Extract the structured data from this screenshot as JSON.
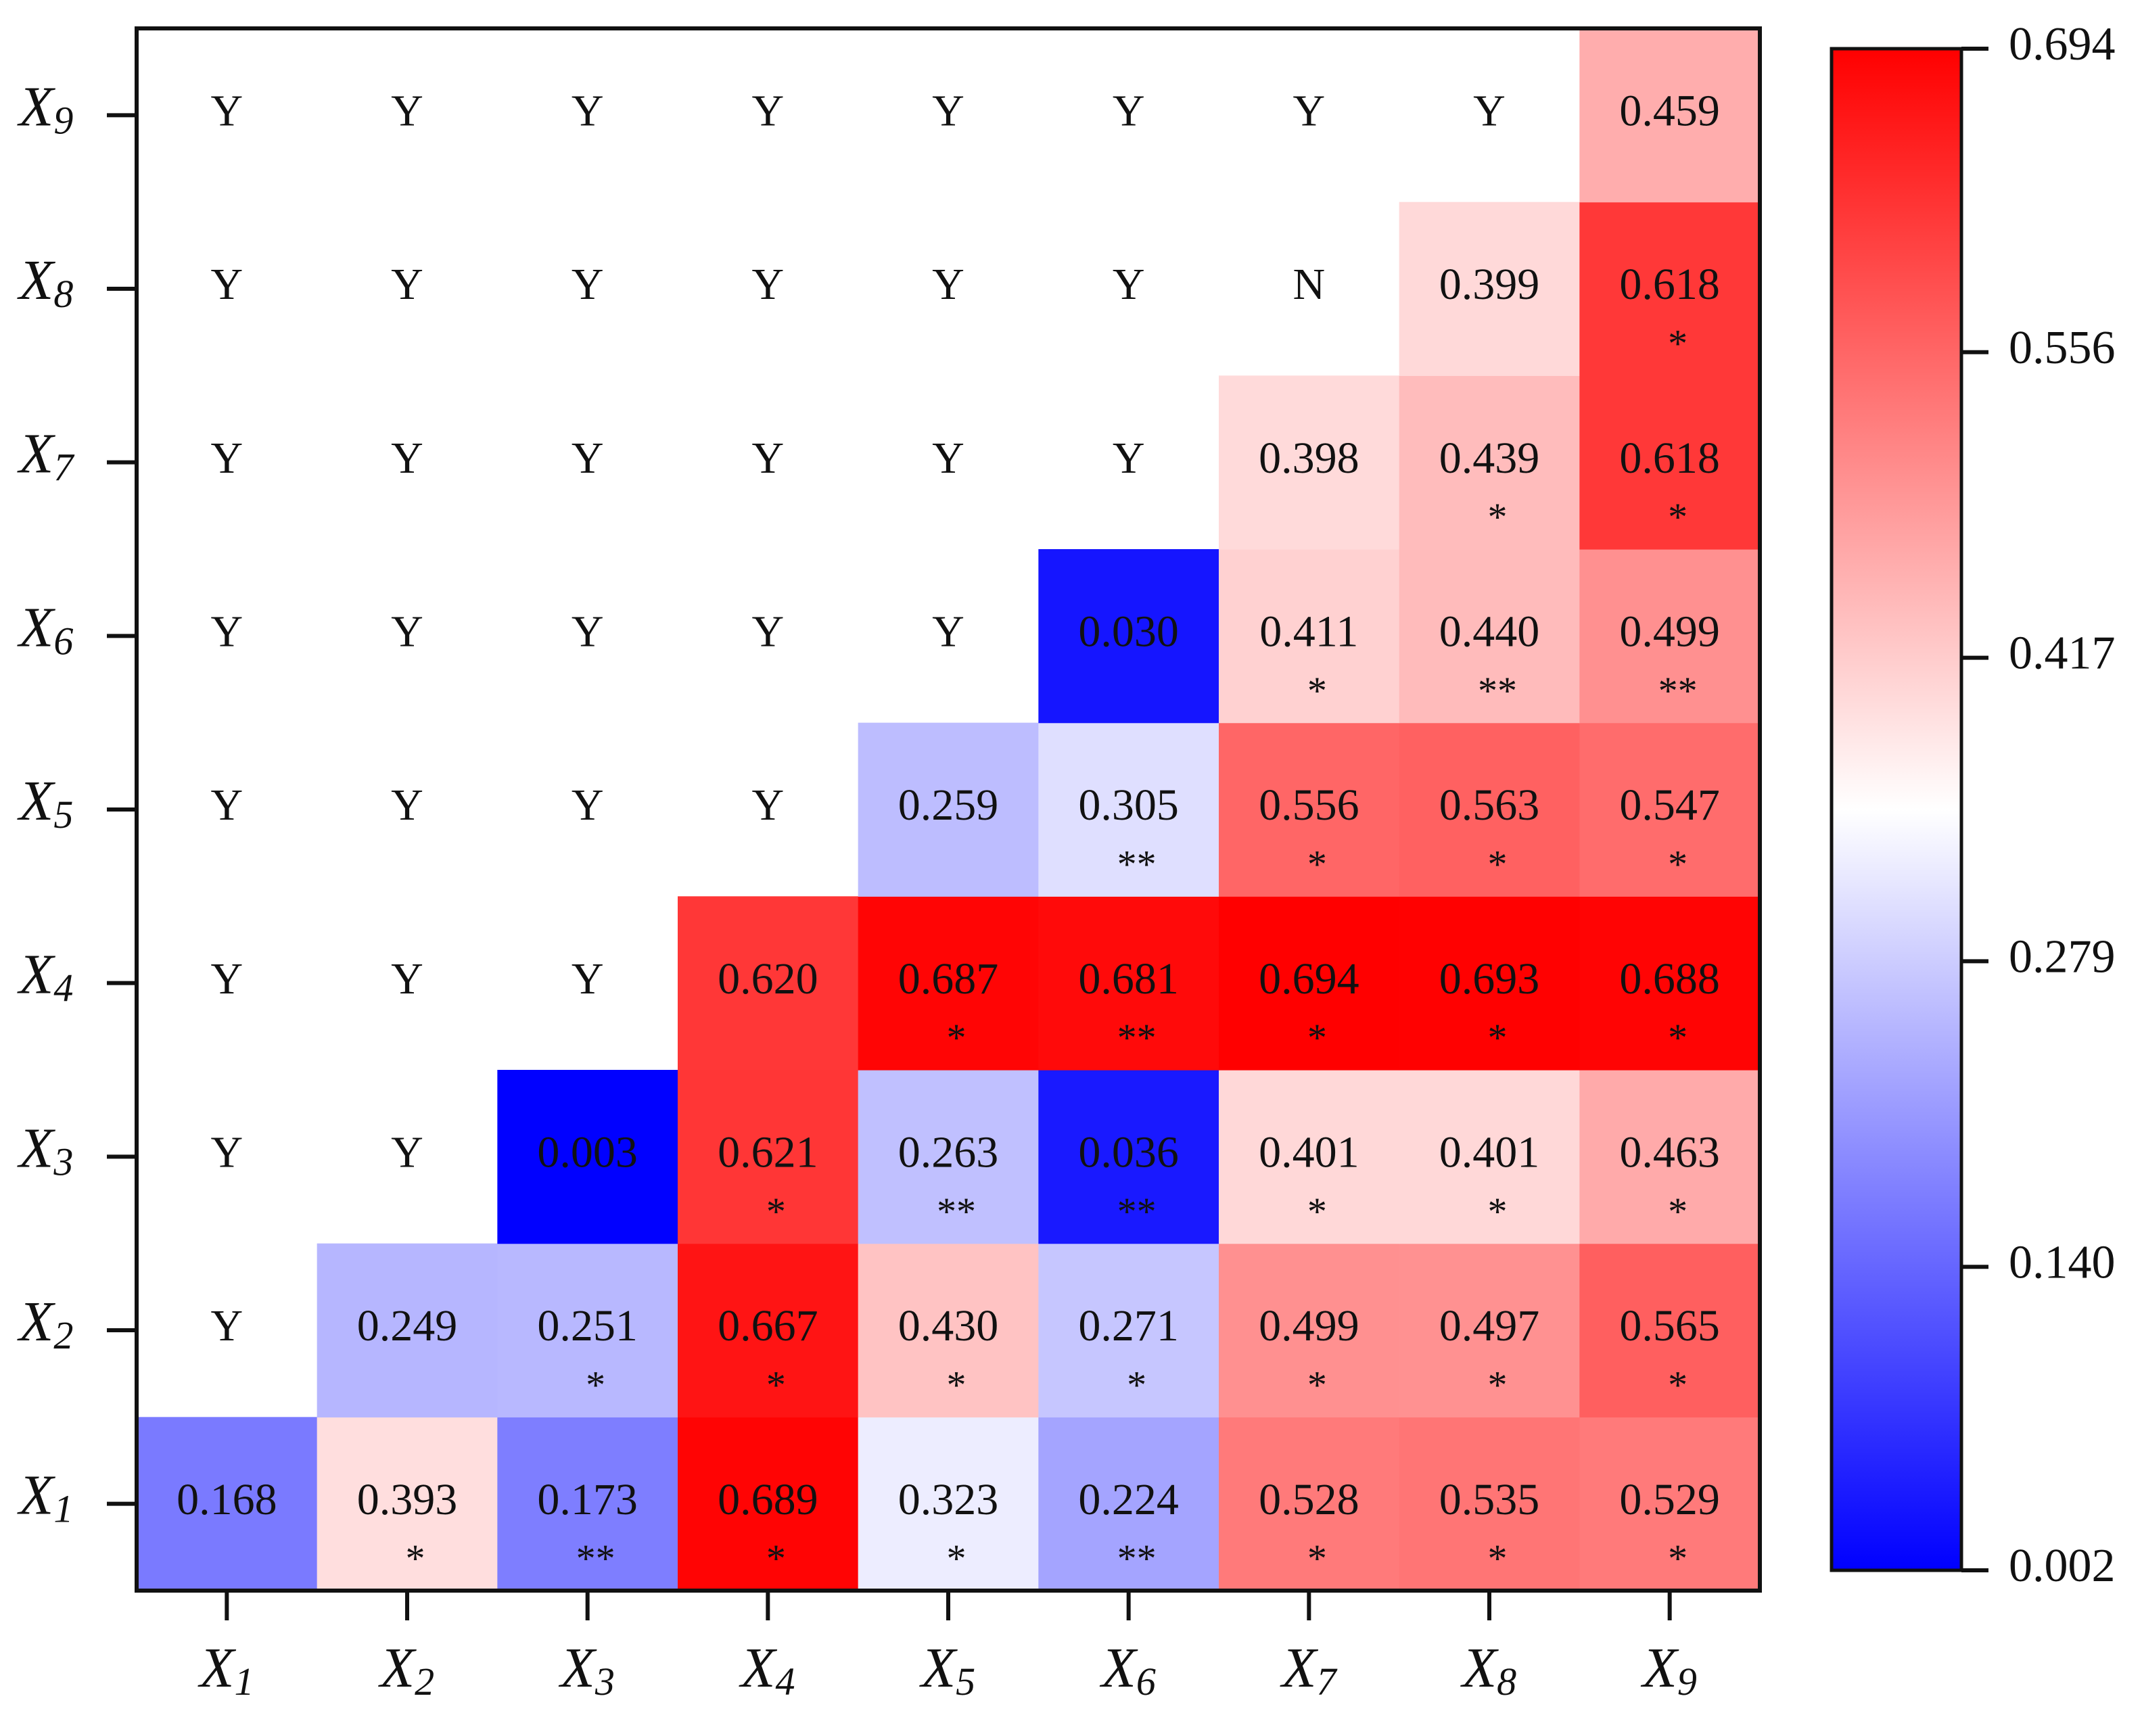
{
  "chart_data": {
    "type": "heatmap",
    "title": "",
    "x_labels": [
      {
        "var": "X",
        "sub": "1"
      },
      {
        "var": "X",
        "sub": "2"
      },
      {
        "var": "X",
        "sub": "3"
      },
      {
        "var": "X",
        "sub": "4"
      },
      {
        "var": "X",
        "sub": "5"
      },
      {
        "var": "X",
        "sub": "6"
      },
      {
        "var": "X",
        "sub": "7"
      },
      {
        "var": "X",
        "sub": "8"
      },
      {
        "var": "X",
        "sub": "9"
      }
    ],
    "y_labels": [
      {
        "var": "X",
        "sub": "1"
      },
      {
        "var": "X",
        "sub": "2"
      },
      {
        "var": "X",
        "sub": "3"
      },
      {
        "var": "X",
        "sub": "4"
      },
      {
        "var": "X",
        "sub": "5"
      },
      {
        "var": "X",
        "sub": "6"
      },
      {
        "var": "X",
        "sub": "7"
      },
      {
        "var": "X",
        "sub": "8"
      },
      {
        "var": "X",
        "sub": "9"
      }
    ],
    "rows_bottom_to_top": [
      [
        {
          "v": "0.168",
          "s": ""
        },
        {
          "v": "0.393",
          "s": "*"
        },
        {
          "v": "0.173",
          "s": "**"
        },
        {
          "v": "0.689",
          "s": "*"
        },
        {
          "v": "0.323",
          "s": "*"
        },
        {
          "v": "0.224",
          "s": "**"
        },
        {
          "v": "0.528",
          "s": "*"
        },
        {
          "v": "0.535",
          "s": "*"
        },
        {
          "v": "0.529",
          "s": "*"
        }
      ],
      [
        {
          "t": "Y"
        },
        {
          "v": "0.249",
          "s": ""
        },
        {
          "v": "0.251",
          "s": "*"
        },
        {
          "v": "0.667",
          "s": "*"
        },
        {
          "v": "0.430",
          "s": "*"
        },
        {
          "v": "0.271",
          "s": "*"
        },
        {
          "v": "0.499",
          "s": "*"
        },
        {
          "v": "0.497",
          "s": "*"
        },
        {
          "v": "0.565",
          "s": "*"
        }
      ],
      [
        {
          "t": "Y"
        },
        {
          "t": "Y"
        },
        {
          "v": "0.003",
          "s": ""
        },
        {
          "v": "0.621",
          "s": "*"
        },
        {
          "v": "0.263",
          "s": "**"
        },
        {
          "v": "0.036",
          "s": "**"
        },
        {
          "v": "0.401",
          "s": "*"
        },
        {
          "v": "0.401",
          "s": "*"
        },
        {
          "v": "0.463",
          "s": "*"
        }
      ],
      [
        {
          "t": "Y"
        },
        {
          "t": "Y"
        },
        {
          "t": "Y"
        },
        {
          "v": "0.620",
          "s": ""
        },
        {
          "v": "0.687",
          "s": "*"
        },
        {
          "v": "0.681",
          "s": "**"
        },
        {
          "v": "0.694",
          "s": "*"
        },
        {
          "v": "0.693",
          "s": "*"
        },
        {
          "v": "0.688",
          "s": "*"
        }
      ],
      [
        {
          "t": "Y"
        },
        {
          "t": "Y"
        },
        {
          "t": "Y"
        },
        {
          "t": "Y"
        },
        {
          "v": "0.259",
          "s": ""
        },
        {
          "v": "0.305",
          "s": "**"
        },
        {
          "v": "0.556",
          "s": "*"
        },
        {
          "v": "0.563",
          "s": "*"
        },
        {
          "v": "0.547",
          "s": "*"
        }
      ],
      [
        {
          "t": "Y"
        },
        {
          "t": "Y"
        },
        {
          "t": "Y"
        },
        {
          "t": "Y"
        },
        {
          "t": "Y"
        },
        {
          "v": "0.030",
          "s": ""
        },
        {
          "v": "0.411",
          "s": "*"
        },
        {
          "v": "0.440",
          "s": "**"
        },
        {
          "v": "0.499",
          "s": "**"
        }
      ],
      [
        {
          "t": "Y"
        },
        {
          "t": "Y"
        },
        {
          "t": "Y"
        },
        {
          "t": "Y"
        },
        {
          "t": "Y"
        },
        {
          "t": "Y"
        },
        {
          "v": "0.398",
          "s": ""
        },
        {
          "v": "0.439",
          "s": "*"
        },
        {
          "v": "0.618",
          "s": "*"
        }
      ],
      [
        {
          "t": "Y"
        },
        {
          "t": "Y"
        },
        {
          "t": "Y"
        },
        {
          "t": "Y"
        },
        {
          "t": "Y"
        },
        {
          "t": "Y"
        },
        {
          "t": "N"
        },
        {
          "v": "0.399",
          "s": ""
        },
        {
          "v": "0.618",
          "s": "*"
        }
      ],
      [
        {
          "t": "Y"
        },
        {
          "t": "Y"
        },
        {
          "t": "Y"
        },
        {
          "t": "Y"
        },
        {
          "t": "Y"
        },
        {
          "t": "Y"
        },
        {
          "t": "Y"
        },
        {
          "t": "Y"
        },
        {
          "v": "0.459",
          "s": ""
        }
      ]
    ],
    "colorbar": {
      "min": 0.002,
      "max": 0.694,
      "ticks": [
        "0.002",
        "0.140",
        "0.279",
        "0.417",
        "0.556",
        "0.694"
      ],
      "colors": {
        "low": "#0000ff",
        "mid": "#ffffff",
        "high": "#ff0000"
      }
    }
  }
}
